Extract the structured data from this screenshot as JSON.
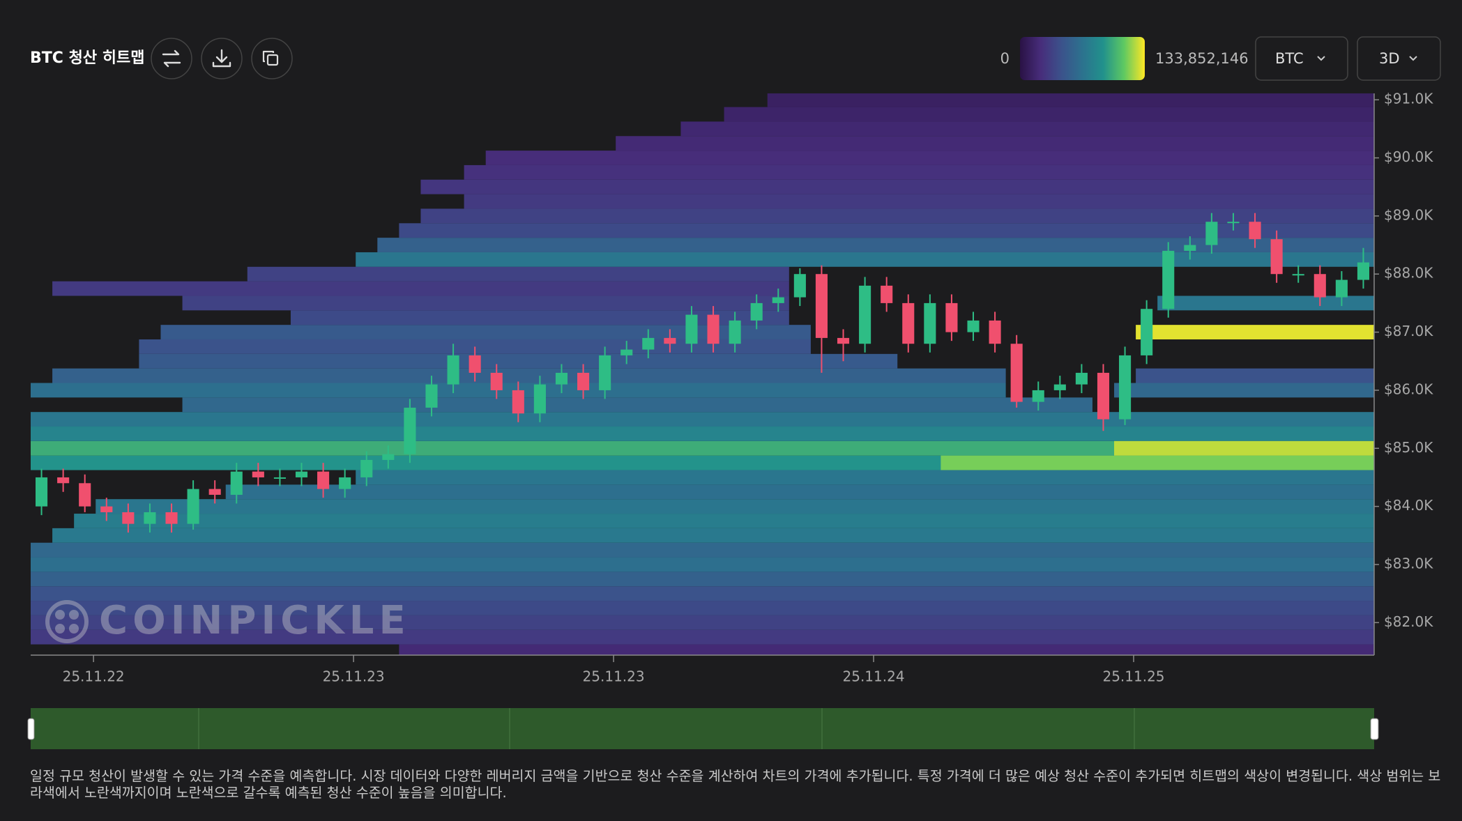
{
  "chart_data": {
    "type": "liquidation-heatmap",
    "title": "BTC 청산 히트맵",
    "scale": {
      "min": 0,
      "max": {
        "value": 133852146,
        "label": "133,852,146"
      }
    },
    "colorscale": [
      "#2a1245",
      "#472d7b",
      "#3b528b",
      "#2c728e",
      "#21918c",
      "#5ec962",
      "#fde725"
    ],
    "symbol": "BTC",
    "period": "3D",
    "watermark": "COINPICKLE",
    "description": "일정 규모 청산이 발생할 수 있는 가격 수준을 예측합니다. 시장 데이터와 다양한 레버리지 금액을 기반으로 청산 수준을 계산하여 차트의 가격에 추가됩니다. 특정 가격에 더 많은 예상 청산 수준이 추가되면 히트맵의 색상이 변경됩니다. 색상 범위는 보라색에서 노란색까지이며 노란색으로 갈수록 예측된 청산 수준이 높음을 의미합니다.",
    "xlim": [
      0,
      62
    ],
    "xticks": [
      {
        "value": 2.9,
        "label": "25.11.22"
      },
      {
        "value": 14.9,
        "label": "25.11.23"
      },
      {
        "value": 26.9,
        "label": "25.11.23"
      },
      {
        "value": 38.9,
        "label": "25.11.24"
      },
      {
        "value": 50.9,
        "label": "25.11.25"
      }
    ],
    "ylim": [
      81440,
      91110
    ],
    "yticks": [
      {
        "value": 91000,
        "label": "$91.0K"
      },
      {
        "value": 90000,
        "label": "$90.0K"
      },
      {
        "value": 89000,
        "label": "$89.0K"
      },
      {
        "value": 88000,
        "label": "$88.0K"
      },
      {
        "value": 87000,
        "label": "$87.0K"
      },
      {
        "value": 86000,
        "label": "$86.0K"
      },
      {
        "value": 85000,
        "label": "$85.0K"
      },
      {
        "value": 84000,
        "label": "$84.0K"
      },
      {
        "value": 83000,
        "label": "$83.0K"
      },
      {
        "value": 82000,
        "label": "$82.0K"
      }
    ],
    "up_color": "#2ebd85",
    "down_color": "#f0506e",
    "candles": {
      "open": [
        84000,
        84500,
        84400,
        84000,
        83900,
        83700,
        83900,
        83700,
        84300,
        84200,
        84600,
        84500,
        84500,
        84600,
        84300,
        84500,
        84800,
        84900,
        85700,
        86100,
        86600,
        86300,
        86000,
        85600,
        86100,
        86300,
        86000,
        86600,
        86700,
        86900,
        86800,
        87300,
        86800,
        87200,
        87500,
        87600,
        88000,
        86900,
        86800,
        87800,
        87500,
        86800,
        87500,
        87000,
        87200,
        86800,
        85800,
        86000,
        86100,
        86300,
        85500,
        86600,
        87400,
        88400,
        88500,
        88900,
        88900,
        88600,
        88000,
        88000,
        87600,
        87900
      ],
      "high": [
        84650,
        84650,
        84550,
        84150,
        84050,
        84050,
        84050,
        84450,
        84450,
        84750,
        84750,
        84650,
        84750,
        84750,
        84650,
        84950,
        85050,
        85850,
        86250,
        86800,
        86750,
        86450,
        86150,
        86250,
        86450,
        86450,
        86750,
        86850,
        87050,
        87050,
        87450,
        87450,
        87350,
        87650,
        87750,
        88100,
        88150,
        87050,
        87950,
        87950,
        87650,
        87650,
        87650,
        87350,
        87350,
        86950,
        86150,
        86250,
        86450,
        86450,
        86750,
        87550,
        88550,
        88650,
        89050,
        89050,
        89050,
        88750,
        88150,
        88150,
        88050,
        88450
      ],
      "low": [
        83850,
        84250,
        83900,
        83750,
        83550,
        83550,
        83550,
        83600,
        84050,
        84050,
        84350,
        84350,
        84350,
        84150,
        84150,
        84350,
        84650,
        84750,
        85550,
        85950,
        86150,
        85850,
        85450,
        85450,
        85950,
        85850,
        85850,
        86450,
        86550,
        86650,
        86650,
        86650,
        86650,
        87050,
        87350,
        87450,
        86300,
        86500,
        86650,
        87350,
        86650,
        86650,
        86850,
        86850,
        86650,
        85700,
        85650,
        85850,
        85950,
        85300,
        85400,
        86450,
        87250,
        88250,
        88350,
        88750,
        88450,
        87850,
        87850,
        87450,
        87450,
        87750
      ],
      "close": [
        84500,
        84400,
        84000,
        83900,
        83700,
        83900,
        83700,
        84300,
        84200,
        84600,
        84500,
        84500,
        84600,
        84300,
        84500,
        84800,
        84900,
        85700,
        86100,
        86600,
        86300,
        86000,
        85600,
        86100,
        86300,
        86000,
        86600,
        86700,
        86900,
        86800,
        87300,
        86800,
        87200,
        87500,
        87600,
        88000,
        86900,
        86800,
        87800,
        87500,
        86800,
        87500,
        87000,
        87200,
        86800,
        85800,
        86000,
        86100,
        86300,
        85500,
        86600,
        87400,
        88400,
        88500,
        88900,
        88900,
        88600,
        88000,
        88000,
        87600,
        87900,
        88200
      ]
    },
    "heatmap": {
      "prices": [
        81500,
        81750,
        82000,
        82250,
        82500,
        82750,
        83000,
        83250,
        83500,
        83750,
        84000,
        84250,
        84500,
        84750,
        85000,
        85250,
        85500,
        85750,
        86000,
        86250,
        86500,
        86750,
        87000,
        87250,
        87500,
        87750,
        88000,
        88250,
        88500,
        88750,
        89000,
        89250,
        89500,
        89750,
        90000,
        90250,
        90500,
        90750,
        91000,
        84750,
        85000,
        87000,
        86000,
        87500,
        86250
      ],
      "starts": [
        17,
        0,
        0,
        0,
        0,
        0,
        0,
        0,
        1,
        2,
        3,
        9,
        15,
        0,
        0,
        0,
        0,
        7,
        0,
        1,
        5,
        5,
        6,
        12,
        7,
        1,
        10,
        15,
        16,
        17,
        18,
        20,
        18,
        20,
        21,
        27,
        30,
        32,
        34,
        42,
        50,
        51,
        50,
        52,
        51
      ],
      "ends": [
        62,
        62,
        62,
        62,
        62,
        62,
        62,
        62,
        62,
        62,
        62,
        62,
        62,
        62,
        62,
        62,
        62,
        49,
        45,
        45,
        40,
        36,
        36,
        35,
        35,
        35,
        35,
        62,
        62,
        62,
        62,
        62,
        62,
        62,
        62,
        62,
        62,
        62,
        62,
        62,
        62,
        62,
        62,
        62,
        62
      ],
      "values": [
        20000000,
        30000000,
        35000000,
        40000000,
        45000000,
        55000000,
        65000000,
        60000000,
        72000000,
        75000000,
        70000000,
        65000000,
        70000000,
        90000000,
        100000000,
        80000000,
        70000000,
        60000000,
        65000000,
        55000000,
        50000000,
        45000000,
        50000000,
        40000000,
        35000000,
        30000000,
        35000000,
        70000000,
        55000000,
        40000000,
        35000000,
        30000000,
        28000000,
        25000000,
        22000000,
        20000000,
        18000000,
        15000000,
        12000000,
        115000000,
        125000000,
        130000000,
        60000000,
        70000000,
        45000000
      ]
    }
  }
}
